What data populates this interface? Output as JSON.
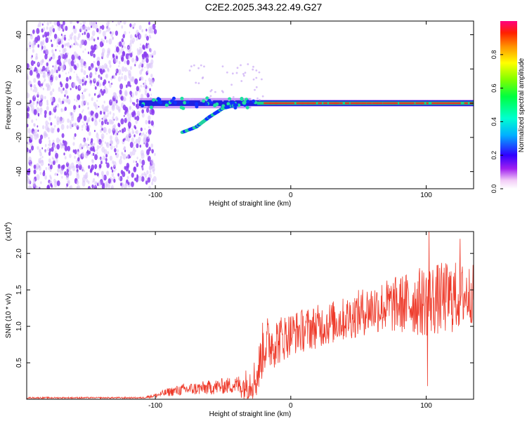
{
  "title": "C2E2.2025.343.22.49.G27",
  "colors": {
    "snr_line": "#ee3a2a",
    "scatter_noise": "#8a3cf0",
    "scatter_noise_light": "#d9c2fa",
    "axis": "#000000"
  },
  "chart_data": [
    {
      "type": "heatmap",
      "title": "C2E2.2025.343.22.49.G27",
      "xlabel": "Height of straight line (km)",
      "ylabel": "Frequency (Hz)",
      "xlim": [
        -195,
        135
      ],
      "ylim": [
        -50,
        48
      ],
      "xticks": [
        -100,
        0,
        100
      ],
      "xtick_labels": [
        "-100",
        "0",
        "100"
      ],
      "yticks": [
        -40,
        -20,
        0,
        20,
        40
      ],
      "ytick_labels": [
        "-40",
        "-20",
        "0",
        "20",
        "40"
      ],
      "noise_region_x": [
        -195,
        -100
      ],
      "signal_start_x": -112,
      "signal_frequency_hz": 0,
      "branch_points": [
        {
          "x": -80,
          "y": -17
        },
        {
          "x": -70,
          "y": -14
        },
        {
          "x": -60,
          "y": -8
        },
        {
          "x": -50,
          "y": -3
        },
        {
          "x": -40,
          "y": -1
        }
      ],
      "colorbar": {
        "label": "Normalized spectral amplitude",
        "range": [
          0,
          1
        ],
        "ticks": [
          0.0,
          0.2,
          0.4,
          0.6,
          0.8
        ],
        "tick_labels": [
          "0.0",
          "0.2",
          "0.4",
          "0.6",
          "0.8"
        ]
      }
    },
    {
      "type": "line",
      "xlabel": "Height of straight line (km)",
      "ylabel": "SNR (10 * v/v)",
      "scale_label": "(x10",
      "scale_exponent": "4",
      "scale_close": ")",
      "xlim": [
        -195,
        135
      ],
      "ylim": [
        0,
        2.3
      ],
      "xticks": [
        -100,
        0,
        100
      ],
      "xtick_labels": [
        "-100",
        "0",
        "100"
      ],
      "yticks": [
        0.5,
        1.0,
        1.5,
        2.0
      ],
      "ytick_labels": [
        "0.5",
        "1.0",
        "1.5",
        "2.0"
      ],
      "series": [
        {
          "name": "SNR",
          "envelope": [
            {
              "x": -195,
              "mean": 0.02,
              "amp": 0.01
            },
            {
              "x": -110,
              "mean": 0.02,
              "amp": 0.01
            },
            {
              "x": -100,
              "mean": 0.05,
              "amp": 0.03
            },
            {
              "x": -90,
              "mean": 0.1,
              "amp": 0.06
            },
            {
              "x": -80,
              "mean": 0.13,
              "amp": 0.08
            },
            {
              "x": -60,
              "mean": 0.16,
              "amp": 0.1
            },
            {
              "x": -40,
              "mean": 0.2,
              "amp": 0.12
            },
            {
              "x": -35,
              "mean": 0.18,
              "amp": 0.2
            },
            {
              "x": -25,
              "mean": 0.3,
              "amp": 0.3
            },
            {
              "x": -20,
              "mean": 0.75,
              "amp": 0.4
            },
            {
              "x": -10,
              "mean": 0.8,
              "amp": 0.35
            },
            {
              "x": 0,
              "mean": 0.9,
              "amp": 0.3
            },
            {
              "x": 20,
              "mean": 1.0,
              "amp": 0.3
            },
            {
              "x": 40,
              "mean": 1.1,
              "amp": 0.3
            },
            {
              "x": 60,
              "mean": 1.25,
              "amp": 0.35
            },
            {
              "x": 80,
              "mean": 1.3,
              "amp": 0.4
            },
            {
              "x": 100,
              "mean": 1.35,
              "amp": 0.5
            },
            {
              "x": 120,
              "mean": 1.4,
              "amp": 0.5
            },
            {
              "x": 135,
              "mean": 1.45,
              "amp": 0.4
            }
          ],
          "peaks": [
            {
              "x": 102,
              "y": 2.3
            },
            {
              "x": 101,
              "y": 0.18
            },
            {
              "x": 125,
              "y": 2.2
            }
          ]
        }
      ]
    }
  ]
}
